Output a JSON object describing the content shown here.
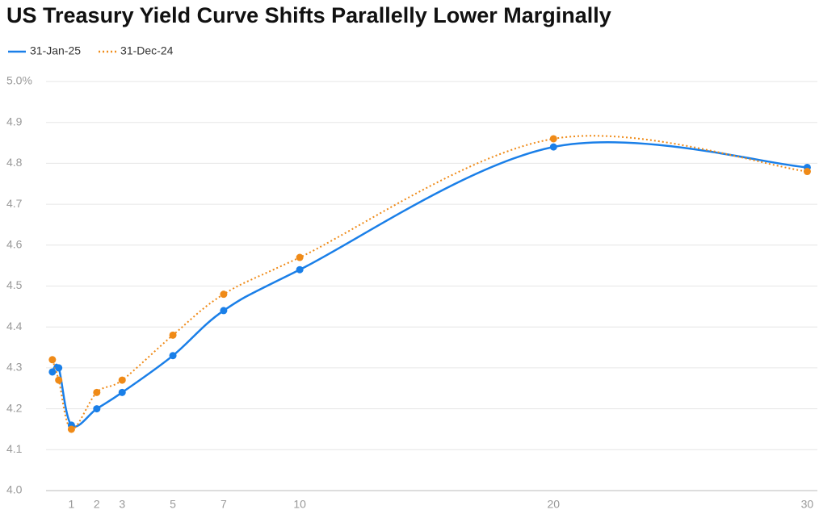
{
  "chart_data": {
    "type": "line",
    "title": "US Treasury Yield Curve Shifts Parallelly Lower Marginally",
    "x": [
      0.25,
      0.5,
      1,
      2,
      3,
      5,
      7,
      10,
      20,
      30
    ],
    "series": [
      {
        "name": "31-Jan-25",
        "color": "#1a7fe8",
        "dash": "solid",
        "values": [
          4.29,
          4.3,
          4.16,
          4.2,
          4.24,
          4.33,
          4.44,
          4.54,
          4.84,
          4.79
        ]
      },
      {
        "name": "31-Dec-24",
        "color": "#ef8a17",
        "dash": "dotted",
        "values": [
          4.32,
          4.27,
          4.15,
          4.24,
          4.27,
          4.38,
          4.48,
          4.57,
          4.86,
          4.78
        ]
      }
    ],
    "xlim": [
      0,
      30.4
    ],
    "xticks": [
      1,
      2,
      3,
      5,
      7,
      10,
      20,
      30
    ],
    "ylim": [
      4.0,
      5.0
    ],
    "yticks": [
      {
        "value": 4.0,
        "label": "4.0"
      },
      4.1,
      4.2,
      4.3,
      4.4,
      4.5,
      4.6,
      4.7,
      4.8,
      4.9,
      {
        "value": 5.0,
        "label": "5.0%"
      }
    ],
    "grid": true,
    "legend": "top-left"
  }
}
